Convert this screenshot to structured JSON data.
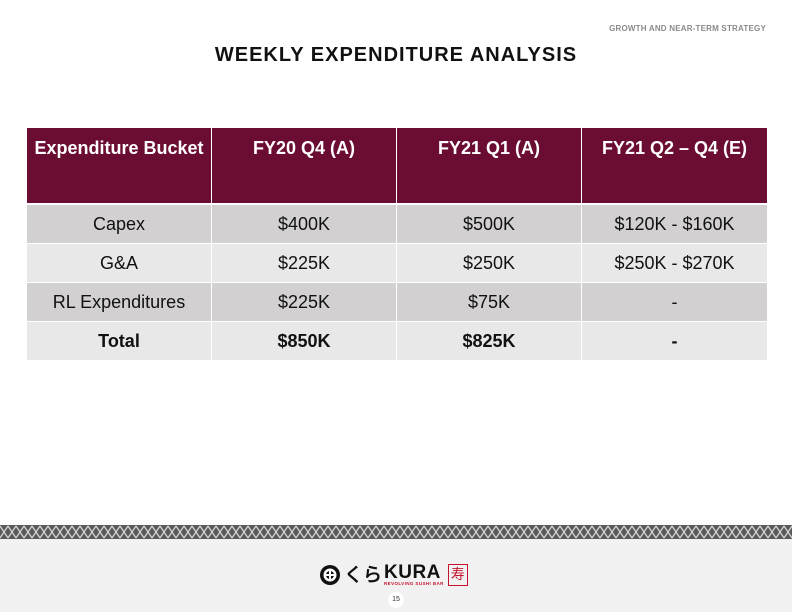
{
  "header": {
    "section_label": "GROWTH AND NEAR-TERM STRATEGY",
    "title": "WEEKLY EXPENDITURE ANALYSIS"
  },
  "table": {
    "columns": [
      "Expenditure Bucket",
      "FY20 Q4 (A)",
      "FY21 Q1 (A)",
      "FY21 Q2 – Q4 (E)"
    ],
    "rows": [
      [
        "Capex",
        "$400K",
        "$500K",
        "$120K - $160K"
      ],
      [
        "G&A",
        "$225K",
        "$250K",
        "$250K - $270K"
      ],
      [
        "RL Expenditures",
        "$225K",
        "$75K",
        "-"
      ],
      [
        "Total",
        "$850K",
        "$825K",
        "-"
      ]
    ]
  },
  "footer": {
    "logo_kana": "くら",
    "logo_name": "KURA",
    "logo_tagline": "REVOLVING SUSHI BAR",
    "logo_seal": "寿",
    "page_number": "15"
  },
  "colors": {
    "header_fill": "#6b0d33",
    "row_dark": "#d3d0d1",
    "row_light": "#e9e8e8",
    "accent_red": "#c4122f"
  }
}
